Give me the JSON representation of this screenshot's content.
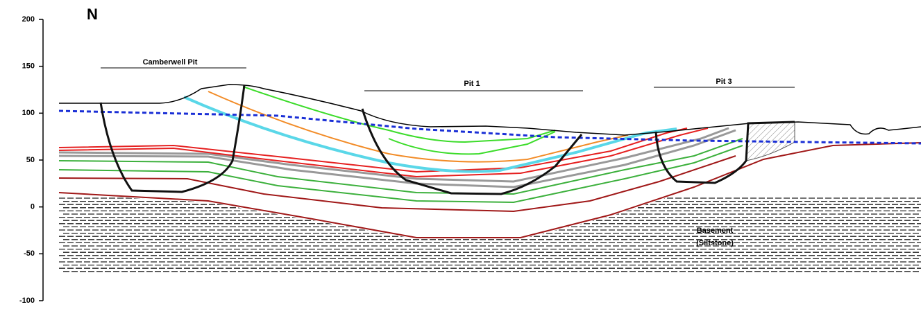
{
  "axis": {
    "lim": [
      -100,
      200
    ],
    "ticks": [
      200,
      150,
      100,
      50,
      0,
      -50,
      -100
    ]
  },
  "labels": {
    "north": "N",
    "camberwell_pit": "Camberwell Pit",
    "pit_1": "Pit 1",
    "pit_3": "Pit 3",
    "basement": [
      "Basement",
      "(Siltstone)"
    ]
  }
}
